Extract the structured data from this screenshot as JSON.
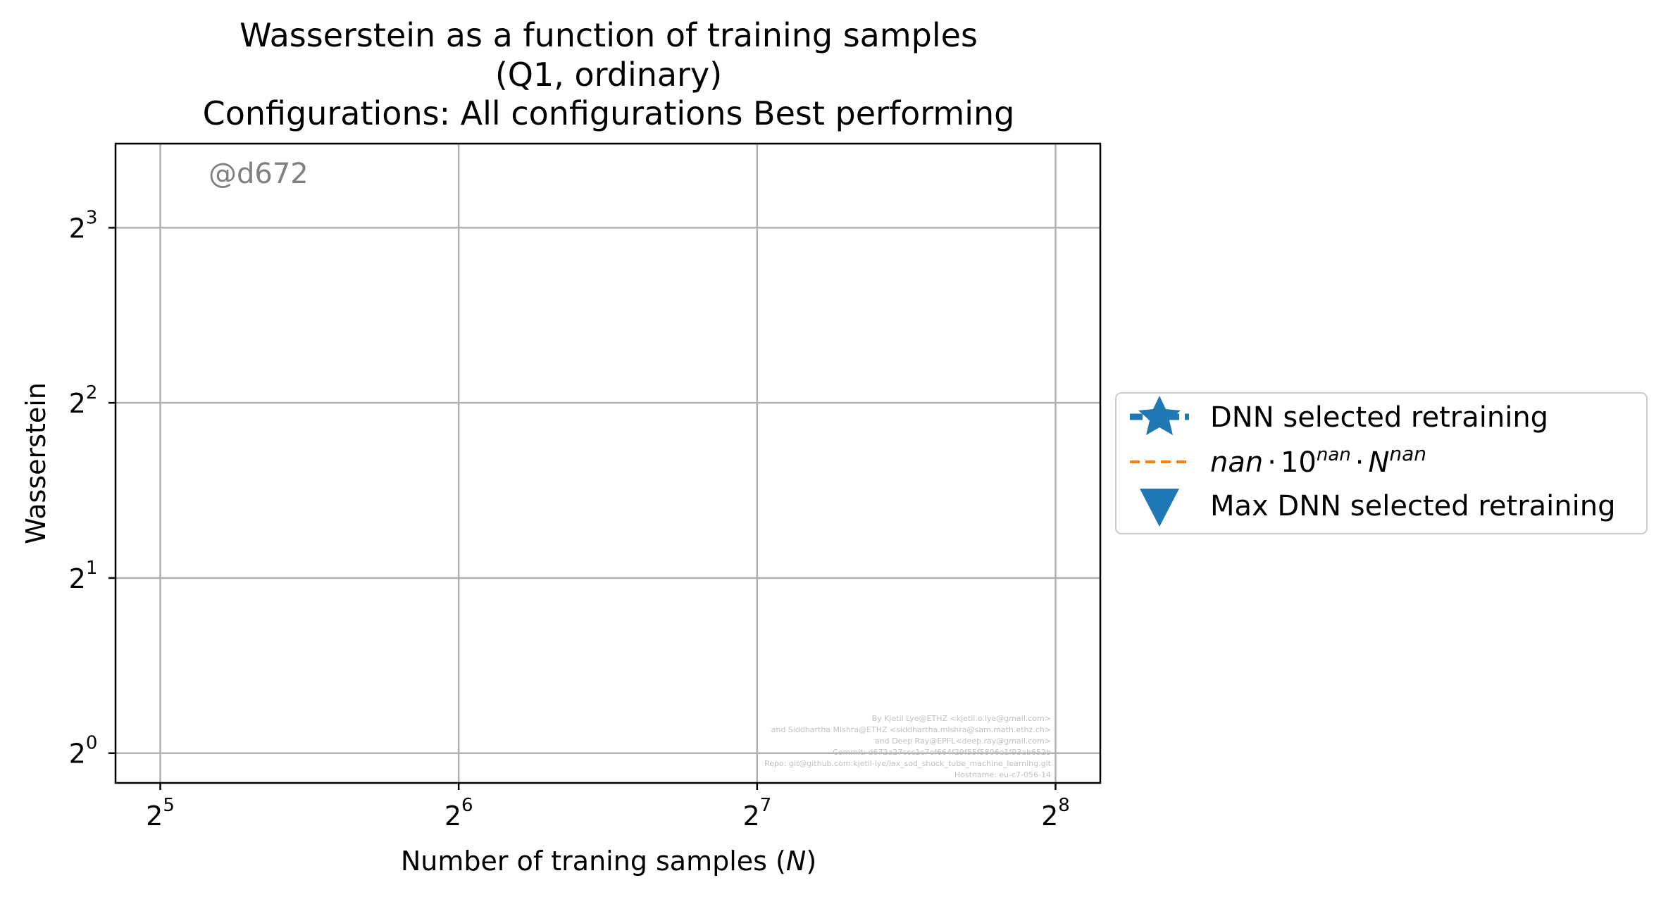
{
  "chart_data": {
    "type": "line",
    "title": [
      "Wasserstein as a function of training samples",
      "(Q1, ordinary)",
      "Configurations: All configurations Best performing"
    ],
    "xlabel": "Number of traning samples (",
    "xlabel_var": "N",
    "xlabel_suffix": ")",
    "ylabel": "Wasserstein",
    "xscale": "log2",
    "yscale": "log2",
    "xlim_exp": [
      4.85,
      8.15
    ],
    "ylim_exp": [
      -0.17,
      3.48
    ],
    "xticks": [
      {
        "base": "2",
        "exp": "5",
        "value": 5
      },
      {
        "base": "2",
        "exp": "6",
        "value": 6
      },
      {
        "base": "2",
        "exp": "7",
        "value": 7
      },
      {
        "base": "2",
        "exp": "8",
        "value": 8
      }
    ],
    "yticks": [
      {
        "base": "2",
        "exp": "0",
        "value": 0
      },
      {
        "base": "2",
        "exp": "1",
        "value": 1
      },
      {
        "base": "2",
        "exp": "2",
        "value": 2
      },
      {
        "base": "2",
        "exp": "3",
        "value": 3
      }
    ],
    "grid": true,
    "legend_position": "right, outside",
    "series": [
      {
        "name": "DNN selected retraining",
        "marker": "star",
        "line": "dashed",
        "color": "#1f77b4",
        "x": [],
        "y": []
      },
      {
        "name": "nan·10^nan·N^nan",
        "marker": "none",
        "line": "dashed",
        "color": "#ff7f0e",
        "x": [],
        "y": []
      },
      {
        "name": "Max DNN selected retraining",
        "marker": "triangle-down",
        "line": "none",
        "color": "#1f77b4",
        "x": [],
        "y": []
      }
    ],
    "legend_labels": {
      "dnn": "DNN selected retraining",
      "fit_nan1": "nan",
      "fit_dot": "·",
      "fit_ten": "10",
      "fit_nan2": "nan",
      "fit_N": "N",
      "fit_nan3": "nan",
      "max": "Max DNN selected retraining"
    },
    "watermark": "@d672",
    "credits": [
      "By Kjetil Lye@ETHZ <kjetil.o.lye@gmail.com>",
      "and Siddhartha Mishra@ETHZ <siddhartha.mishra@sam.math.ethz.ch>",
      "and Deep Ray@EPFL<deep.ray@gmail.com>",
      "Commit: d672a27ccc1c7ef664f29f55f5806e1f93ab652b",
      "Repo: git@github.com:kjetil-lye/lax_sod_shock_tube_machine_learning.git",
      "Hostname: eu-c7-056-14"
    ],
    "colors": {
      "blue": "#1f77b4",
      "orange": "#ff7f0e",
      "grid": "#b0b0b0"
    }
  }
}
